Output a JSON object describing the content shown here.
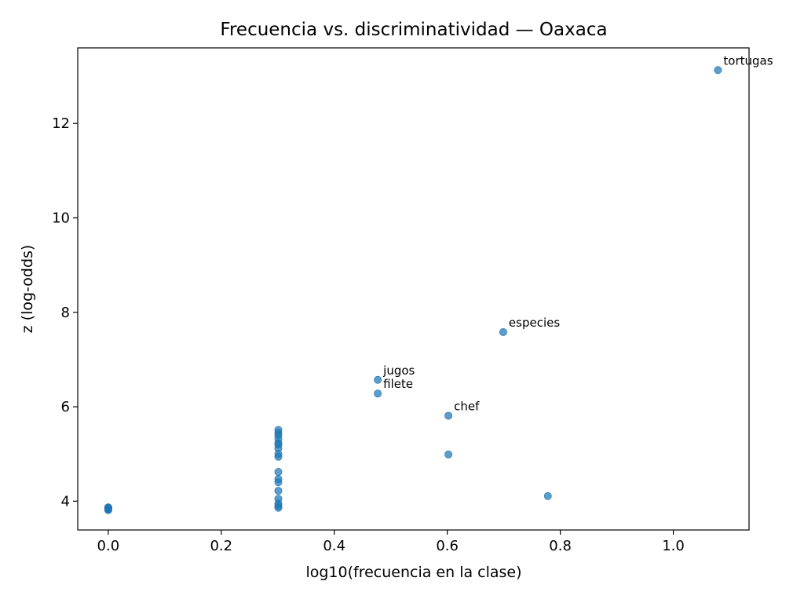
{
  "chart_data": {
    "type": "scatter",
    "title": "Frecuencia vs. discriminatividad — Oaxaca",
    "xlabel": "log10(frecuencia en la clase)",
    "ylabel": "z (log-odds)",
    "xlim": [
      -0.054,
      1.134
    ],
    "ylim": [
      3.39,
      13.6
    ],
    "x_ticks": [
      "0.0",
      "0.2",
      "0.4",
      "0.6",
      "0.8",
      "1.0"
    ],
    "y_ticks": [
      "4",
      "6",
      "8",
      "10",
      "12"
    ],
    "grid": false,
    "point_color": "#1f77b4",
    "points": [
      {
        "x": 0.0,
        "y": 3.81
      },
      {
        "x": 0.0,
        "y": 3.83
      },
      {
        "x": 0.0,
        "y": 3.84
      },
      {
        "x": 0.0,
        "y": 3.85
      },
      {
        "x": 0.0,
        "y": 3.86
      },
      {
        "x": 0.0,
        "y": 3.87
      },
      {
        "x": 0.301,
        "y": 3.86
      },
      {
        "x": 0.301,
        "y": 3.9
      },
      {
        "x": 0.301,
        "y": 3.95
      },
      {
        "x": 0.301,
        "y": 4.05
      },
      {
        "x": 0.301,
        "y": 4.22
      },
      {
        "x": 0.301,
        "y": 4.4
      },
      {
        "x": 0.301,
        "y": 4.47
      },
      {
        "x": 0.301,
        "y": 4.62
      },
      {
        "x": 0.301,
        "y": 4.94
      },
      {
        "x": 0.301,
        "y": 5.0
      },
      {
        "x": 0.301,
        "y": 5.12
      },
      {
        "x": 0.301,
        "y": 5.2
      },
      {
        "x": 0.301,
        "y": 5.23
      },
      {
        "x": 0.301,
        "y": 5.32
      },
      {
        "x": 0.301,
        "y": 5.4
      },
      {
        "x": 0.301,
        "y": 5.45
      },
      {
        "x": 0.301,
        "y": 5.51
      },
      {
        "x": 0.477,
        "y": 6.57,
        "label": "jugos"
      },
      {
        "x": 0.477,
        "y": 6.28,
        "label": "filete"
      },
      {
        "x": 0.602,
        "y": 5.81,
        "label": "chef"
      },
      {
        "x": 0.602,
        "y": 4.99
      },
      {
        "x": 0.699,
        "y": 7.58,
        "label": "especies"
      },
      {
        "x": 0.778,
        "y": 4.11
      },
      {
        "x": 1.079,
        "y": 13.13,
        "label": "tortugas"
      }
    ]
  }
}
